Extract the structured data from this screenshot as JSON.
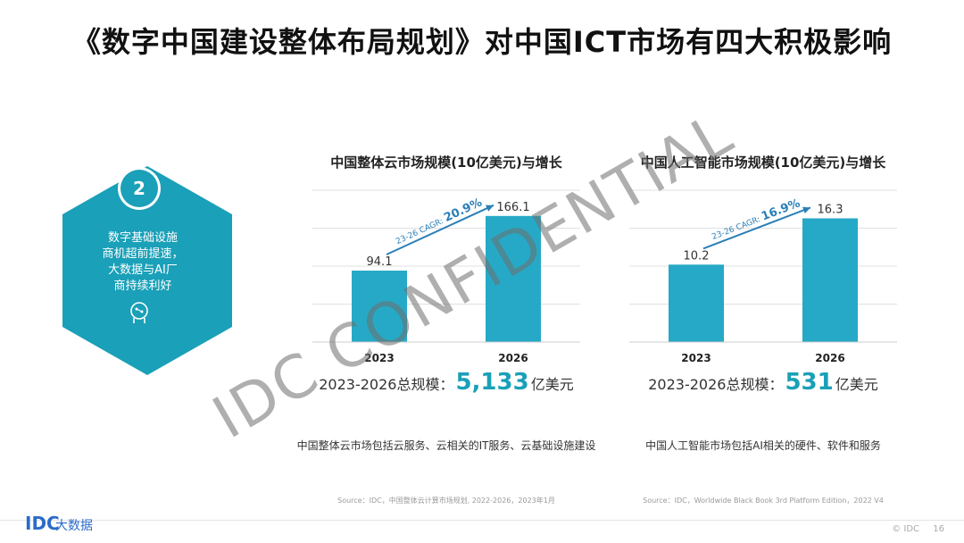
{
  "title": "《数字中国建设整体布局规划》对中国ICT市场有四大积极影响",
  "hex": {
    "badge": "2",
    "lines": [
      "数字基础设施",
      "商机超前提速，",
      "大数据与AI厂",
      "商持续利好"
    ],
    "color": "#1aa0b8"
  },
  "chart_data": [
    {
      "type": "bar",
      "title": "中国整体云市场规模(10亿美元)与增长",
      "categories": [
        "2023",
        "2026"
      ],
      "values": [
        94.1,
        166.1
      ],
      "value_labels": [
        "94.1",
        "166.1"
      ],
      "ylim": [
        0,
        200
      ],
      "grid": true,
      "cagr_label": "23-26 CAGR:",
      "cagr_value": "20.9%",
      "total_label": "2023-2026总规模：",
      "total_value": "5,133",
      "total_unit": "亿美元",
      "note": "中国整体云市场包括云服务、云相关的IT服务、云基础设施建设",
      "source": "Source：IDC，中国整体云计算市场规划, 2022-2026，2023年1月",
      "bar_color": "#26a9c6"
    },
    {
      "type": "bar",
      "title": "中国人工智能市场规模(10亿美元)与增长",
      "categories": [
        "2023",
        "2026"
      ],
      "values": [
        10.2,
        16.3
      ],
      "value_labels": [
        "10.2",
        "16.3"
      ],
      "ylim": [
        0,
        20
      ],
      "grid": true,
      "cagr_label": "23-26 CAGR:",
      "cagr_value": "16.9%",
      "total_label": "2023-2026总规模：",
      "total_value": "531",
      "total_unit": "亿美元",
      "note": "中国人工智能市场包括AI相关的硬件、软件和服务",
      "source": "Source：IDC，Worldwide Black Book 3rd Platform Edition，2022 V4",
      "bar_color": "#26a9c6"
    }
  ],
  "watermark": "IDC CONFIDENTIAL",
  "footer": {
    "logo": "IDC",
    "logo_sub": "大数据",
    "copyright": "© IDC",
    "page": "16"
  }
}
